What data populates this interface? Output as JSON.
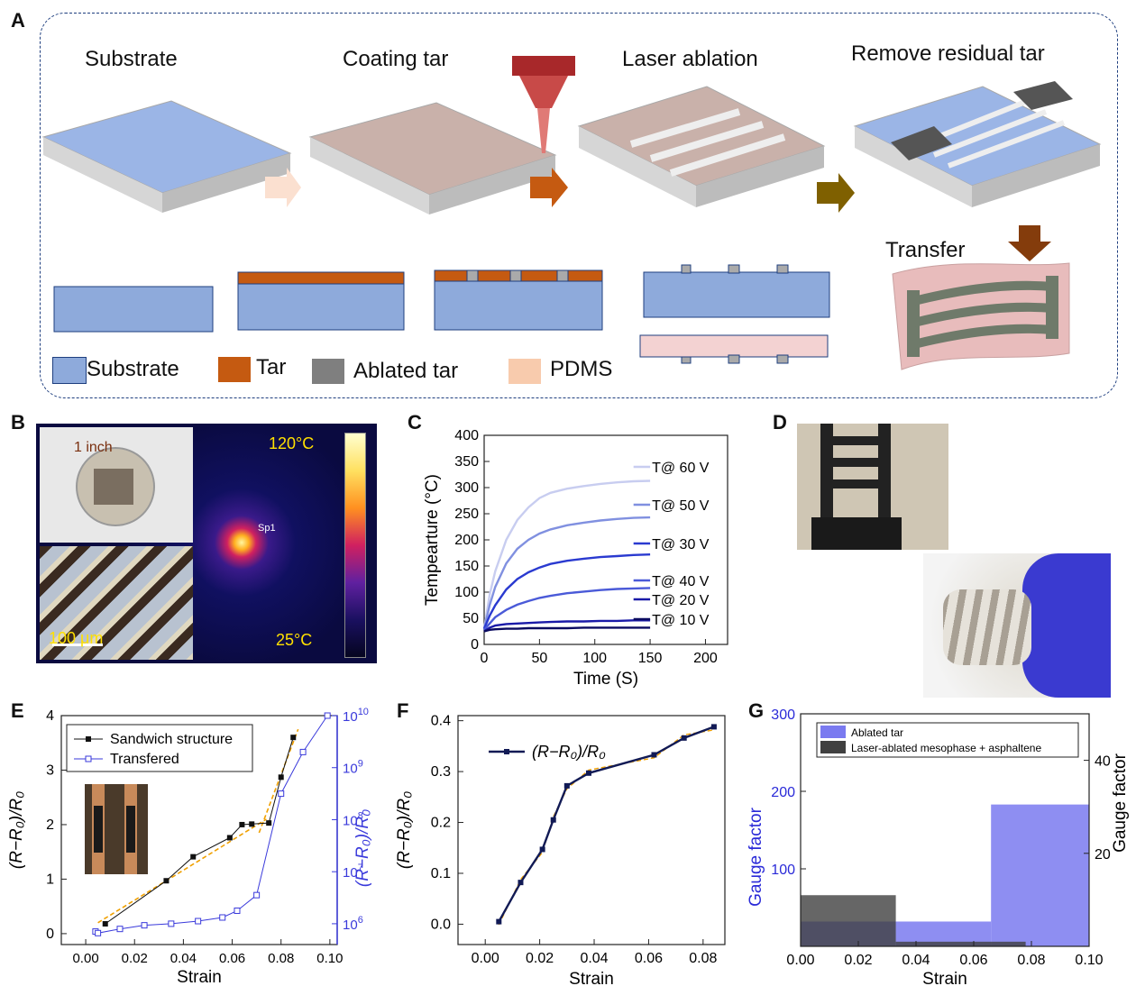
{
  "panels": {
    "a": "A",
    "b": "B",
    "c": "C",
    "d": "D",
    "e": "E",
    "f": "F",
    "g": "G"
  },
  "panelA": {
    "steps": [
      "Substrate",
      "Coating tar",
      "Laser ablation",
      "Remove residual tar"
    ],
    "transfer": "Transfer",
    "legend": [
      {
        "label": "Substrate",
        "color": "#8eaadb"
      },
      {
        "label": "Tar",
        "color": "#c55a11"
      },
      {
        "label": "Ablated tar",
        "color": "#7f7f7f"
      },
      {
        "label": "PDMS",
        "color": "#f8cbad"
      }
    ],
    "arrow_colors": [
      "#fbe0d0",
      "#c55a11",
      "#7f6000",
      "#843c0c"
    ]
  },
  "panelB": {
    "scale_inch": "1 inch",
    "scale_um": "100 μm",
    "t_high": "120°C",
    "t_low": "25°C",
    "spot": "Sp1"
  },
  "chart_data": [
    {
      "id": "C",
      "type": "line",
      "xlabel": "Time (S)",
      "ylabel": "Tempearture (°C)",
      "xlim": [
        0,
        220
      ],
      "ylim": [
        0,
        400
      ],
      "xticks": [
        0,
        50,
        100,
        150,
        200
      ],
      "yticks": [
        0,
        50,
        100,
        150,
        200,
        250,
        300,
        350,
        400
      ],
      "series": [
        {
          "name": "T@ 60 V",
          "color": "#c8cdf0",
          "x": [
            0,
            5,
            10,
            20,
            30,
            40,
            50,
            60,
            75,
            90,
            105,
            120,
            135,
            150
          ],
          "y": [
            30,
            95,
            140,
            200,
            238,
            262,
            280,
            290,
            298,
            303,
            307,
            310,
            312,
            313
          ]
        },
        {
          "name": "T@ 50 V",
          "color": "#8090e0",
          "x": [
            0,
            5,
            10,
            20,
            30,
            40,
            50,
            60,
            75,
            90,
            105,
            120,
            135,
            150
          ],
          "y": [
            30,
            75,
            110,
            155,
            183,
            200,
            212,
            220,
            228,
            233,
            237,
            240,
            242,
            243
          ]
        },
        {
          "name": "T@ 30 V",
          "color": "#2a3ad0",
          "x": [
            0,
            5,
            10,
            20,
            30,
            40,
            50,
            60,
            75,
            90,
            105,
            120,
            135,
            150
          ],
          "y": [
            30,
            55,
            75,
            105,
            125,
            138,
            147,
            154,
            160,
            164,
            167,
            169,
            171,
            172
          ]
        },
        {
          "name": "T@ 40 V",
          "color": "#4a5ad8",
          "x": [
            0,
            5,
            10,
            20,
            30,
            40,
            50,
            60,
            75,
            90,
            105,
            120,
            135,
            150
          ],
          "y": [
            28,
            40,
            52,
            66,
            76,
            83,
            89,
            93,
            98,
            101,
            104,
            106,
            107,
            108
          ]
        },
        {
          "name": "T@ 20 V",
          "color": "#1a1aa8",
          "x": [
            0,
            5,
            10,
            20,
            30,
            40,
            50,
            60,
            75,
            90,
            105,
            120,
            135,
            150
          ],
          "y": [
            25,
            32,
            36,
            39,
            40,
            41,
            42,
            43,
            44,
            44,
            45,
            45,
            46,
            46
          ]
        },
        {
          "name": "T@ 10 V",
          "color": "#0a0a60",
          "x": [
            0,
            5,
            10,
            20,
            30,
            40,
            50,
            60,
            75,
            90,
            105,
            120,
            135,
            150
          ],
          "y": [
            25,
            28,
            29,
            30,
            30,
            31,
            31,
            31,
            31,
            32,
            32,
            32,
            32,
            32
          ]
        }
      ]
    },
    {
      "id": "E",
      "type": "line",
      "xlabel": "Strain",
      "ylabel_left": "(R−R0)/R0",
      "ylabel_right": "(R−R0)/R0",
      "xlim": [
        -0.01,
        0.103
      ],
      "ylim_left": [
        -0.2,
        4
      ],
      "ylim_right_log10": [
        5.6,
        10
      ],
      "xticks": [
        "0.00",
        "0.02",
        "0.04",
        "0.06",
        "0.08",
        "0.10"
      ],
      "yticks_left": [
        0,
        1,
        2,
        3,
        4
      ],
      "yticks_right": [
        "10^6",
        "10^7",
        "10^8",
        "10^9",
        "10^10"
      ],
      "series": [
        {
          "name": "Sandwich structure",
          "color": "#111111",
          "marker": "square-filled",
          "x": [
            0.008,
            0.033,
            0.044,
            0.059,
            0.064,
            0.068,
            0.075,
            0.08,
            0.085
          ],
          "y": [
            0.18,
            0.97,
            1.41,
            1.76,
            2.0,
            2.01,
            2.03,
            2.87,
            3.6
          ]
        },
        {
          "name": "Transfered",
          "color": "#3a3adb",
          "marker": "square-open",
          "axis": "right",
          "x": [
            0.004,
            0.005,
            0.014,
            0.024,
            0.035,
            0.046,
            0.056,
            0.062,
            0.07,
            0.08,
            0.089,
            0.099
          ],
          "y_log10": [
            5.85,
            5.82,
            5.9,
            5.97,
            6.0,
            6.05,
            6.12,
            6.25,
            6.55,
            8.5,
            9.3,
            10.0
          ]
        }
      ],
      "fits": [
        {
          "x": [
            0.005,
            0.074
          ],
          "y": [
            0.2,
            2.1
          ]
        },
        {
          "x": [
            0.071,
            0.087
          ],
          "y": [
            1.85,
            3.75
          ]
        }
      ]
    },
    {
      "id": "F",
      "type": "line",
      "xlabel": "Strain",
      "ylabel": "(R−R0)/R0",
      "xlim": [
        -0.01,
        0.088
      ],
      "ylim": [
        -0.04,
        0.41
      ],
      "xticks": [
        "0.00",
        "0.02",
        "0.04",
        "0.06",
        "0.08"
      ],
      "yticks": [
        "0.0",
        "0.1",
        "0.2",
        "0.3",
        "0.4"
      ],
      "series": [
        {
          "name": "(R−R0)/R0",
          "color": "#111a55",
          "x": [
            0.005,
            0.013,
            0.021,
            0.025,
            0.03,
            0.038,
            0.062,
            0.073,
            0.084
          ],
          "y": [
            0.005,
            0.082,
            0.147,
            0.205,
            0.272,
            0.297,
            0.333,
            0.366,
            0.388
          ]
        }
      ]
    },
    {
      "id": "G",
      "type": "bar",
      "xlabel": "Strain",
      "ylabel_left": "Gauge factor",
      "ylabel_right": "Gauge factor",
      "xlim": [
        0,
        0.1
      ],
      "ylim_left": [
        0,
        300
      ],
      "ylim_right": [
        0,
        50
      ],
      "xticks": [
        "0.00",
        "0.02",
        "0.04",
        "0.06",
        "0.08",
        "0.10"
      ],
      "yticks_left": [
        100,
        200,
        300
      ],
      "yticks_right": [
        20,
        40
      ],
      "series": [
        {
          "name": "Ablated tar",
          "color": "#7a7af0",
          "axis": "left",
          "bins": [
            [
              0,
              0.033,
              32
            ],
            [
              0.033,
              0.066,
              32
            ],
            [
              0.066,
              0.1,
              183
            ]
          ]
        },
        {
          "name": "Laser-ablated mesophase + asphaltene",
          "color": "#404040",
          "axis": "right",
          "bins": [
            [
              0,
              0.033,
              11
            ],
            [
              0.033,
              0.078,
              1
            ]
          ]
        }
      ]
    }
  ]
}
